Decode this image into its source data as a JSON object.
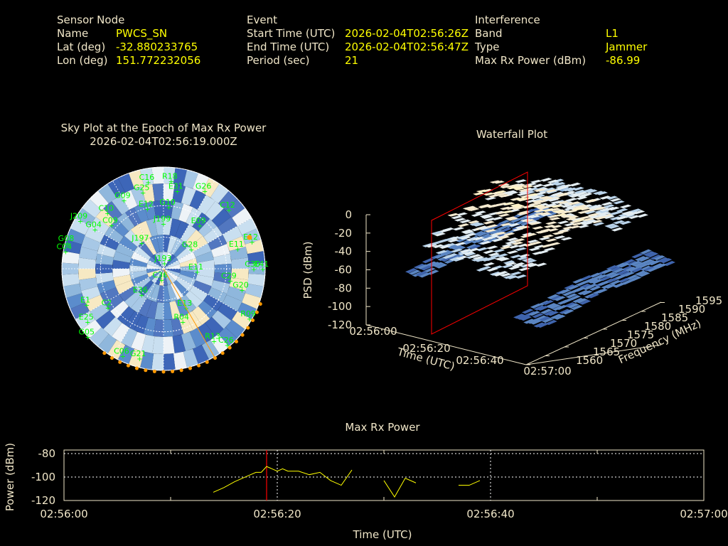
{
  "header": {
    "sensor": {
      "heading": "Sensor Node",
      "name_label": "Name",
      "name_value": "PWCS_SN",
      "lat_label": "Lat (deg)",
      "lat_value": "-32.880233765",
      "lon_label": "Lon (deg)",
      "lon_value": "151.772232056"
    },
    "event": {
      "heading": "Event",
      "start_label": "Start Time (UTC)",
      "start_value": "2026-02-04T02:56:26Z",
      "end_label": "End Time (UTC)",
      "end_value": "2026-02-04T02:56:47Z",
      "period_label": "Period (sec)",
      "period_value": "21"
    },
    "interference": {
      "heading": "Interference",
      "band_label": "Band",
      "band_value": "L1",
      "type_label": "Type",
      "type_value": "Jammer",
      "maxrx_label": "Max Rx Power (dBm)",
      "maxrx_value": "-86.99"
    }
  },
  "chart_data": [
    {
      "type": "scatter",
      "title": "Sky Plot at the Epoch of Max Rx Power",
      "subtitle": "2026-02-04T02:56:19.000Z",
      "colors": {
        "satellite": "#00ff00",
        "jammer": "#ff9900"
      },
      "satellites": [
        {
          "id": "C16",
          "az": 350,
          "el": 78
        },
        {
          "id": "G25",
          "az": 345,
          "el": 70
        },
        {
          "id": "R18",
          "az": 5,
          "el": 78
        },
        {
          "id": "E31",
          "az": 10,
          "el": 70
        },
        {
          "id": "G26",
          "az": 28,
          "el": 78
        },
        {
          "id": "C12",
          "az": 48,
          "el": 78
        },
        {
          "id": "C10",
          "az": 315,
          "el": 70
        },
        {
          "id": "G04",
          "az": 300,
          "el": 70
        },
        {
          "id": "G09",
          "az": 330,
          "el": 70
        },
        {
          "id": "E12",
          "az": 345,
          "el": 55
        },
        {
          "id": "C09",
          "az": 310,
          "el": 60
        },
        {
          "id": "G10",
          "az": 5,
          "el": 55
        },
        {
          "id": "E09",
          "az": 40,
          "el": 50
        },
        {
          "id": "E11",
          "az": 75,
          "el": 68
        },
        {
          "id": "E12",
          "az": 73,
          "el": 82
        },
        {
          "id": "J199",
          "az": 0,
          "el": 40
        },
        {
          "id": "G28",
          "az": 55,
          "el": 30
        },
        {
          "id": "J209",
          "az": 300,
          "el": 85
        },
        {
          "id": "G08",
          "az": 285,
          "el": 88
        },
        {
          "id": "C04",
          "az": 280,
          "el": 88
        },
        {
          "id": "J197",
          "az": 320,
          "el": 30
        },
        {
          "id": "J193",
          "az": 10,
          "el": 5
        },
        {
          "id": "E11",
          "az": 95,
          "el": 30
        },
        {
          "id": "C29",
          "az": 100,
          "el": 60
        },
        {
          "id": "G20",
          "az": 105,
          "el": 72
        },
        {
          "id": "E1",
          "az": 245,
          "el": 75
        },
        {
          "id": "C2",
          "az": 235,
          "el": 60
        },
        {
          "id": "E25",
          "az": 235,
          "el": 82
        },
        {
          "id": "G05",
          "az": 228,
          "el": 90
        },
        {
          "id": "E36",
          "az": 220,
          "el": 30
        },
        {
          "id": "C36",
          "az": 190,
          "el": 10
        },
        {
          "id": "E13",
          "az": 150,
          "el": 40
        },
        {
          "id": "R04",
          "az": 160,
          "el": 50
        },
        {
          "id": "R09",
          "az": 120,
          "el": 88
        },
        {
          "id": "C26",
          "az": 140,
          "el": 88
        },
        {
          "id": "R13",
          "az": 145,
          "el": 78
        },
        {
          "id": "G21",
          "az": 195,
          "el": 82
        },
        {
          "id": "C06",
          "az": 205,
          "el": 85
        },
        {
          "id": "E41",
          "az": 90,
          "el": 88
        },
        {
          "id": "C30",
          "az": 90,
          "el": 80
        }
      ],
      "jammer_direction_az": 150
    },
    {
      "type": "heatmap",
      "title": "Waterfall Plot",
      "zlabel": "PSD (dBm)",
      "xlabel": "Time (UTC)",
      "ylabel": "Frequency (MHz)",
      "z_ticks": [
        "0",
        "-20",
        "-40",
        "-60",
        "-80",
        "-100",
        "-120"
      ],
      "x_ticks": [
        "02:56:00",
        "02:56:20",
        "02:56:40",
        "02:57:00"
      ],
      "y_ticks": [
        "1560",
        "1565",
        "1570",
        "1575",
        "1580",
        "1585",
        "1590",
        "1595"
      ],
      "zlim": [
        -120,
        0
      ],
      "freq_range_mhz": [
        1560,
        1595
      ],
      "marker_time": "02:56:19",
      "colors": {
        "low": "#4a6fb5",
        "high": "#fff2c8",
        "marker": "#ff0000"
      }
    },
    {
      "type": "line",
      "title": "Max Rx Power",
      "xlabel": "Time (UTC)",
      "ylabel": "Power (dBm)",
      "x_ticks": [
        "02:56:00",
        "02:56:20",
        "02:56:40",
        "02:57:00"
      ],
      "y_ticks": [
        "-80",
        "-100",
        "-120"
      ],
      "ylim": [
        -120,
        -77
      ],
      "xlim_sec": [
        0,
        60
      ],
      "marker_sec": 19,
      "colors": {
        "line": "#ffff00",
        "marker": "#ff0000",
        "grid": "#ffffff"
      },
      "series": [
        {
          "segments": [
            [
              [
                14,
                -113
              ],
              [
                15,
                -109
              ],
              [
                16,
                -104
              ],
              [
                17,
                -100
              ],
              [
                18,
                -96
              ],
              [
                18.5,
                -96
              ],
              [
                19,
                -91
              ],
              [
                19.5,
                -93
              ],
              [
                20,
                -95
              ],
              [
                20.5,
                -93
              ],
              [
                21,
                -95
              ],
              [
                22,
                -95
              ],
              [
                23,
                -98
              ],
              [
                24,
                -96
              ],
              [
                25,
                -103
              ],
              [
                26,
                -107
              ],
              [
                27,
                -94
              ]
            ],
            [
              [
                30,
                -103
              ],
              [
                31,
                -117
              ],
              [
                32,
                -101
              ],
              [
                33,
                -105
              ]
            ],
            [
              [
                37,
                -107
              ],
              [
                38,
                -107
              ],
              [
                39,
                -103
              ]
            ]
          ]
        }
      ]
    }
  ]
}
